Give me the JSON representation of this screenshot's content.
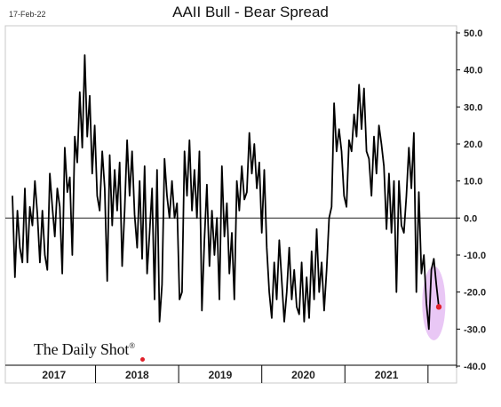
{
  "date_stamp": "17-Feb-22",
  "brand": {
    "name": "The Daily Shot",
    "mark": "®"
  },
  "colors": {
    "line": "#000000",
    "highlight_fill": "#e9c7f5",
    "marker": "#e0202a",
    "zero_line": "#000000"
  },
  "chart_data": {
    "type": "line",
    "title": "AAII Bull - Bear Spread",
    "xlabel": "",
    "ylabel": "",
    "ylim": [
      -40,
      50
    ],
    "y_ticks": [
      50,
      40,
      30,
      20,
      10,
      0,
      -10,
      -20,
      -30,
      -40
    ],
    "y_tick_labels": [
      "50.0",
      "40.0",
      "30.0",
      "20.0",
      "10.0",
      "0.0",
      "-10.0",
      "-20.0",
      "-30.0",
      "-40.0"
    ],
    "y_axis_side": "right",
    "grid": false,
    "zero_line": true,
    "x_range": [
      2017.0,
      2022.13
    ],
    "x_categories": [
      "2017",
      "2018",
      "2019",
      "2020",
      "2021"
    ],
    "x_category_bounds": [
      [
        2017.0,
        2018.0
      ],
      [
        2018.0,
        2019.0
      ],
      [
        2019.0,
        2020.0
      ],
      [
        2020.0,
        2021.0
      ],
      [
        2021.0,
        2022.0
      ]
    ],
    "series": [
      {
        "name": "",
        "points": [
          [
            2017.0,
            6
          ],
          [
            2017.03,
            -16
          ],
          [
            2017.06,
            2
          ],
          [
            2017.09,
            -8
          ],
          [
            2017.12,
            -12
          ],
          [
            2017.15,
            8
          ],
          [
            2017.18,
            -12
          ],
          [
            2017.21,
            3
          ],
          [
            2017.24,
            -2
          ],
          [
            2017.27,
            10
          ],
          [
            2017.3,
            1
          ],
          [
            2017.33,
            -12
          ],
          [
            2017.36,
            2
          ],
          [
            2017.39,
            -10
          ],
          [
            2017.42,
            -14
          ],
          [
            2017.45,
            12
          ],
          [
            2017.48,
            3
          ],
          [
            2017.51,
            -5
          ],
          [
            2017.54,
            8
          ],
          [
            2017.57,
            3
          ],
          [
            2017.6,
            -15
          ],
          [
            2017.63,
            19
          ],
          [
            2017.66,
            7
          ],
          [
            2017.69,
            11
          ],
          [
            2017.72,
            -10
          ],
          [
            2017.75,
            22
          ],
          [
            2017.78,
            15
          ],
          [
            2017.81,
            34
          ],
          [
            2017.84,
            19
          ],
          [
            2017.87,
            44
          ],
          [
            2017.9,
            22
          ],
          [
            2017.93,
            33
          ],
          [
            2017.96,
            12
          ],
          [
            2017.99,
            25
          ],
          [
            2018.02,
            6
          ],
          [
            2018.05,
            2
          ],
          [
            2018.08,
            18
          ],
          [
            2018.11,
            8
          ],
          [
            2018.14,
            -17
          ],
          [
            2018.17,
            17
          ],
          [
            2018.2,
            -2
          ],
          [
            2018.23,
            13
          ],
          [
            2018.26,
            2
          ],
          [
            2018.29,
            15
          ],
          [
            2018.32,
            -13
          ],
          [
            2018.35,
            2
          ],
          [
            2018.38,
            21
          ],
          [
            2018.41,
            6
          ],
          [
            2018.44,
            18
          ],
          [
            2018.47,
            1
          ],
          [
            2018.5,
            -8
          ],
          [
            2018.53,
            10
          ],
          [
            2018.56,
            -11
          ],
          [
            2018.59,
            14
          ],
          [
            2018.62,
            -15
          ],
          [
            2018.65,
            -4
          ],
          [
            2018.68,
            8
          ],
          [
            2018.71,
            -22
          ],
          [
            2018.74,
            13
          ],
          [
            2018.77,
            -28
          ],
          [
            2018.8,
            -18
          ],
          [
            2018.83,
            16
          ],
          [
            2018.86,
            6
          ],
          [
            2018.89,
            0
          ],
          [
            2018.92,
            10
          ],
          [
            2018.95,
            0
          ],
          [
            2018.98,
            4
          ],
          [
            2019.01,
            -22
          ],
          [
            2019.04,
            -20
          ],
          [
            2019.07,
            18
          ],
          [
            2019.1,
            6
          ],
          [
            2019.13,
            21
          ],
          [
            2019.16,
            2
          ],
          [
            2019.19,
            13
          ],
          [
            2019.22,
            0
          ],
          [
            2019.25,
            18
          ],
          [
            2019.28,
            -25
          ],
          [
            2019.31,
            -6
          ],
          [
            2019.34,
            9
          ],
          [
            2019.37,
            -13
          ],
          [
            2019.4,
            2
          ],
          [
            2019.43,
            -10
          ],
          [
            2019.46,
            0
          ],
          [
            2019.49,
            -22
          ],
          [
            2019.52,
            14
          ],
          [
            2019.55,
            -5
          ],
          [
            2019.58,
            4
          ],
          [
            2019.61,
            -15
          ],
          [
            2019.64,
            -4
          ],
          [
            2019.67,
            -22
          ],
          [
            2019.7,
            10
          ],
          [
            2019.73,
            2
          ],
          [
            2019.76,
            14
          ],
          [
            2019.79,
            5
          ],
          [
            2019.82,
            7
          ],
          [
            2019.85,
            23
          ],
          [
            2019.88,
            12
          ],
          [
            2019.91,
            20
          ],
          [
            2019.94,
            8
          ],
          [
            2019.97,
            15
          ],
          [
            2020.0,
            -4
          ],
          [
            2020.03,
            13
          ],
          [
            2020.06,
            -8
          ],
          [
            2020.09,
            -20
          ],
          [
            2020.12,
            -27
          ],
          [
            2020.15,
            -12
          ],
          [
            2020.18,
            -22
          ],
          [
            2020.21,
            -6
          ],
          [
            2020.24,
            -17
          ],
          [
            2020.27,
            -28
          ],
          [
            2020.3,
            -20
          ],
          [
            2020.33,
            -8
          ],
          [
            2020.36,
            -22
          ],
          [
            2020.39,
            -14
          ],
          [
            2020.42,
            -24
          ],
          [
            2020.45,
            -26
          ],
          [
            2020.48,
            -12
          ],
          [
            2020.51,
            -28
          ],
          [
            2020.54,
            -16
          ],
          [
            2020.57,
            -27
          ],
          [
            2020.6,
            -9
          ],
          [
            2020.63,
            -22
          ],
          [
            2020.66,
            -3
          ],
          [
            2020.69,
            -20
          ],
          [
            2020.72,
            -12
          ],
          [
            2020.75,
            -25
          ],
          [
            2020.78,
            -14
          ],
          [
            2020.81,
            0
          ],
          [
            2020.84,
            3
          ],
          [
            2020.87,
            31
          ],
          [
            2020.9,
            18
          ],
          [
            2020.93,
            24
          ],
          [
            2020.96,
            18
          ],
          [
            2020.99,
            6
          ],
          [
            2021.02,
            3
          ],
          [
            2021.05,
            21
          ],
          [
            2021.08,
            18
          ],
          [
            2021.11,
            28
          ],
          [
            2021.14,
            22
          ],
          [
            2021.17,
            36
          ],
          [
            2021.2,
            24
          ],
          [
            2021.23,
            35
          ],
          [
            2021.26,
            18
          ],
          [
            2021.29,
            16
          ],
          [
            2021.32,
            6
          ],
          [
            2021.35,
            22
          ],
          [
            2021.38,
            12
          ],
          [
            2021.41,
            25
          ],
          [
            2021.44,
            20
          ],
          [
            2021.47,
            14
          ],
          [
            2021.5,
            -3
          ],
          [
            2021.53,
            12
          ],
          [
            2021.56,
            -4
          ],
          [
            2021.59,
            10
          ],
          [
            2021.62,
            -20
          ],
          [
            2021.65,
            10
          ],
          [
            2021.68,
            -2
          ],
          [
            2021.71,
            -4
          ],
          [
            2021.74,
            6
          ],
          [
            2021.77,
            19
          ],
          [
            2021.8,
            8
          ],
          [
            2021.83,
            23
          ],
          [
            2021.86,
            -20
          ],
          [
            2021.89,
            7
          ],
          [
            2021.92,
            -15
          ],
          [
            2021.95,
            -10
          ],
          [
            2021.98,
            -23
          ],
          [
            2022.01,
            -30
          ],
          [
            2022.04,
            -14
          ],
          [
            2022.07,
            -11
          ],
          [
            2022.1,
            -18
          ],
          [
            2022.13,
            -24
          ]
        ]
      }
    ],
    "highlight": {
      "x_center": 2022.07,
      "y_center": -23,
      "x_radius": 0.14,
      "y_radius": 10
    },
    "last_point_marker": [
      2022.13,
      -24
    ]
  }
}
